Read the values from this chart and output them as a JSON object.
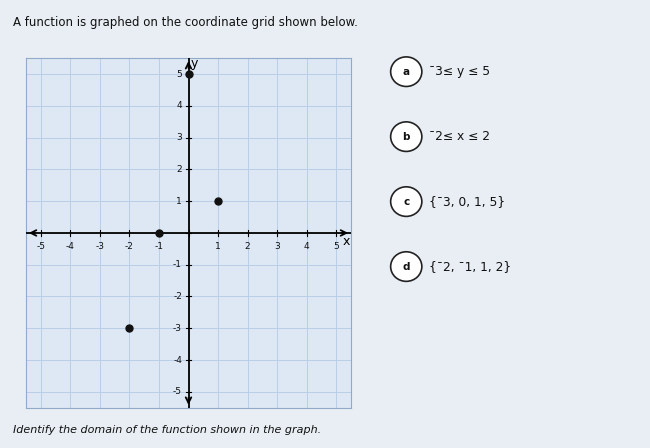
{
  "title": "A function is graphed on the coordinate grid shown below.",
  "subtitle": "Identify the domain of the function shown in the graph.",
  "points": [
    [
      -2,
      -3
    ],
    [
      -1,
      0
    ],
    [
      0,
      5
    ],
    [
      1,
      1
    ]
  ],
  "xlim": [
    -5.5,
    5.5
  ],
  "ylim": [
    -5.5,
    5.5
  ],
  "xtick_vals": [
    -5,
    -4,
    -3,
    -2,
    -1,
    1,
    2,
    3,
    4,
    5
  ],
  "ytick_vals": [
    -5,
    -4,
    -3,
    -2,
    -1,
    1,
    2,
    3,
    4,
    5
  ],
  "grid_color": "#b8cfe8",
  "grid_alpha": 1.0,
  "bg_color": "#dde8f4",
  "point_color": "#111111",
  "point_size": 5,
  "options": [
    {
      "label": "a",
      "text1": "¯3≤ y ≤ 5",
      "text2": ""
    },
    {
      "label": "b",
      "text1": "¯2≤ x ≤ 2",
      "text2": ""
    },
    {
      "label": "c",
      "text1": "{¯3, 0, 1, 5}",
      "text2": ""
    },
    {
      "label": "d",
      "text1": "{¯2, ¯1, 1, 2}",
      "text2": ""
    }
  ],
  "outer_bg": "#b0c4d8",
  "panel_bg": "#e8eef4",
  "panel_edge": "#999999"
}
